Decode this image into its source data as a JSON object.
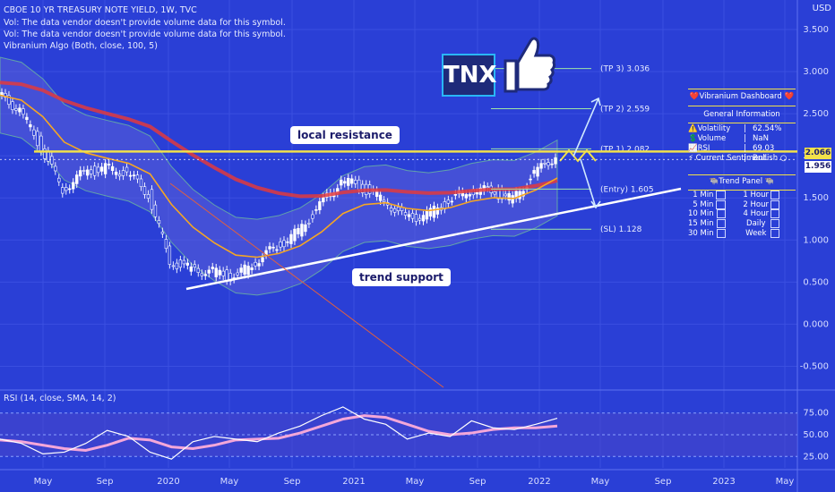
{
  "header": {
    "title": "CBOE 10 YR TREASURY NOTE YIELD, 1W, TVC",
    "vol_note_1": "Vol: The data vendor doesn't provide volume data for this symbol.",
    "vol_note_2": "Vol: The data vendor doesn't provide volume data for this symbol.",
    "indicator": "Vibranium Algo (Both, close, 100, 5)",
    "currency": "USD"
  },
  "rsi_header": "RSI (14, close, SMA, 14, 2)",
  "logo_text": "TNX",
  "callouts": {
    "resistance": "local resistance",
    "support": "trend support"
  },
  "price_tags": {
    "current": "2.066",
    "other": "1.956",
    "current_color": "#f2e14a",
    "other_color": "#ffffff"
  },
  "colors": {
    "background": "#2a3fd6",
    "up_candle": "#ffffff",
    "ema_red": "#e0393e",
    "ema_orange": "#f5a623",
    "band_green": "#7ee08a",
    "resistance_yellow": "#f2e14a",
    "support_white": "#ffffff",
    "rsi_line": "#ffffff",
    "rsi_signal": "#f4a7d9"
  },
  "dashboard": {
    "title": "❤️Vibranium Dashboard ❤️",
    "section": "General Information",
    "rows": [
      {
        "label": "⚠️Volatility",
        "value": "62.54%"
      },
      {
        "label": "💲Volume",
        "value": "NaN"
      },
      {
        "label": "📈RSI",
        "value": "69.03"
      },
      {
        "label": "⚡ Current Sentiment",
        "value": "Bullish ○"
      }
    ]
  },
  "trend_panel": {
    "title": "🐃Trend Panel 🐃",
    "rows": [
      {
        "left": "1 Min",
        "right": "1 Hour"
      },
      {
        "left": "5 Min",
        "right": "2 Hour"
      },
      {
        "left": "10 Min",
        "right": "4 Hour"
      },
      {
        "left": "15 Min",
        "right": "Daily"
      },
      {
        "left": "30 Min",
        "right": "Week"
      }
    ]
  },
  "chart_data": [
    {
      "type": "line",
      "title": "CBOE 10 YR TREASURY NOTE YIELD, 1W, TVC",
      "ylabel": "USD",
      "ylim": [
        -0.75,
        3.85
      ],
      "y_ticks": [
        3.5,
        3.0,
        2.5,
        2.0,
        1.5,
        1.0,
        0.5,
        0.0,
        -0.5
      ],
      "y_tick_labels": [
        "3.500",
        "3.000",
        "2.500",
        "2.000",
        "1.500",
        "1.000",
        "0.500",
        "0.000",
        "-0.500"
      ],
      "x_tick_labels": [
        "May",
        "Sep",
        "2020",
        "May",
        "Sep",
        "2021",
        "May",
        "Sep",
        "2022",
        "May",
        "Sep",
        "2023",
        "May"
      ],
      "grid": true,
      "x": [
        "2019-02",
        "2019-04",
        "2019-06",
        "2019-08",
        "2019-09",
        "2019-11",
        "2020-01",
        "2020-02",
        "2020-03",
        "2020-05",
        "2020-07",
        "2020-08",
        "2020-10",
        "2020-12",
        "2021-01",
        "2021-02",
        "2021-03",
        "2021-05",
        "2021-06",
        "2021-07",
        "2021-08",
        "2021-09",
        "2021-10",
        "2021-11",
        "2021-12",
        "2022-01",
        "2022-02"
      ],
      "series": [
        {
          "name": "Close",
          "values": [
            2.72,
            2.55,
            2.1,
            1.6,
            1.8,
            1.85,
            1.8,
            1.55,
            0.75,
            0.65,
            0.62,
            0.55,
            0.75,
            0.92,
            1.1,
            1.4,
            1.72,
            1.62,
            1.48,
            1.25,
            1.3,
            1.45,
            1.6,
            1.58,
            1.48,
            1.78,
            2.0
          ]
        }
      ],
      "levels": [
        {
          "name": "(TP 3)",
          "value": 3.036
        },
        {
          "name": "(TP 2)",
          "value": 2.559
        },
        {
          "name": "(TP 1)",
          "value": 2.082
        },
        {
          "name": "(Entry)",
          "value": 1.605
        },
        {
          "name": "(SL)",
          "value": 1.128
        }
      ],
      "resistance": 2.05,
      "current_price": 2.066,
      "marker_price": 1.956
    },
    {
      "type": "line",
      "title": "RSI (14, close, SMA, 14, 2)",
      "ylim": [
        15,
        85
      ],
      "y_ticks": [
        75,
        50,
        25
      ],
      "y_tick_labels": [
        "75.00",
        "50.00",
        "25.00"
      ],
      "series": [
        {
          "name": "RSI",
          "values": [
            45,
            40,
            28,
            30,
            40,
            55,
            48,
            30,
            22,
            42,
            48,
            45,
            42,
            52,
            60,
            72,
            82,
            68,
            62,
            45,
            52,
            48,
            66,
            58,
            56,
            62,
            69
          ]
        },
        {
          "name": "SMA",
          "values": [
            44,
            42,
            38,
            34,
            32,
            38,
            46,
            44,
            36,
            34,
            38,
            44,
            45,
            46,
            52,
            60,
            68,
            72,
            70,
            62,
            54,
            50,
            52,
            56,
            58,
            58,
            60
          ]
        }
      ]
    }
  ]
}
